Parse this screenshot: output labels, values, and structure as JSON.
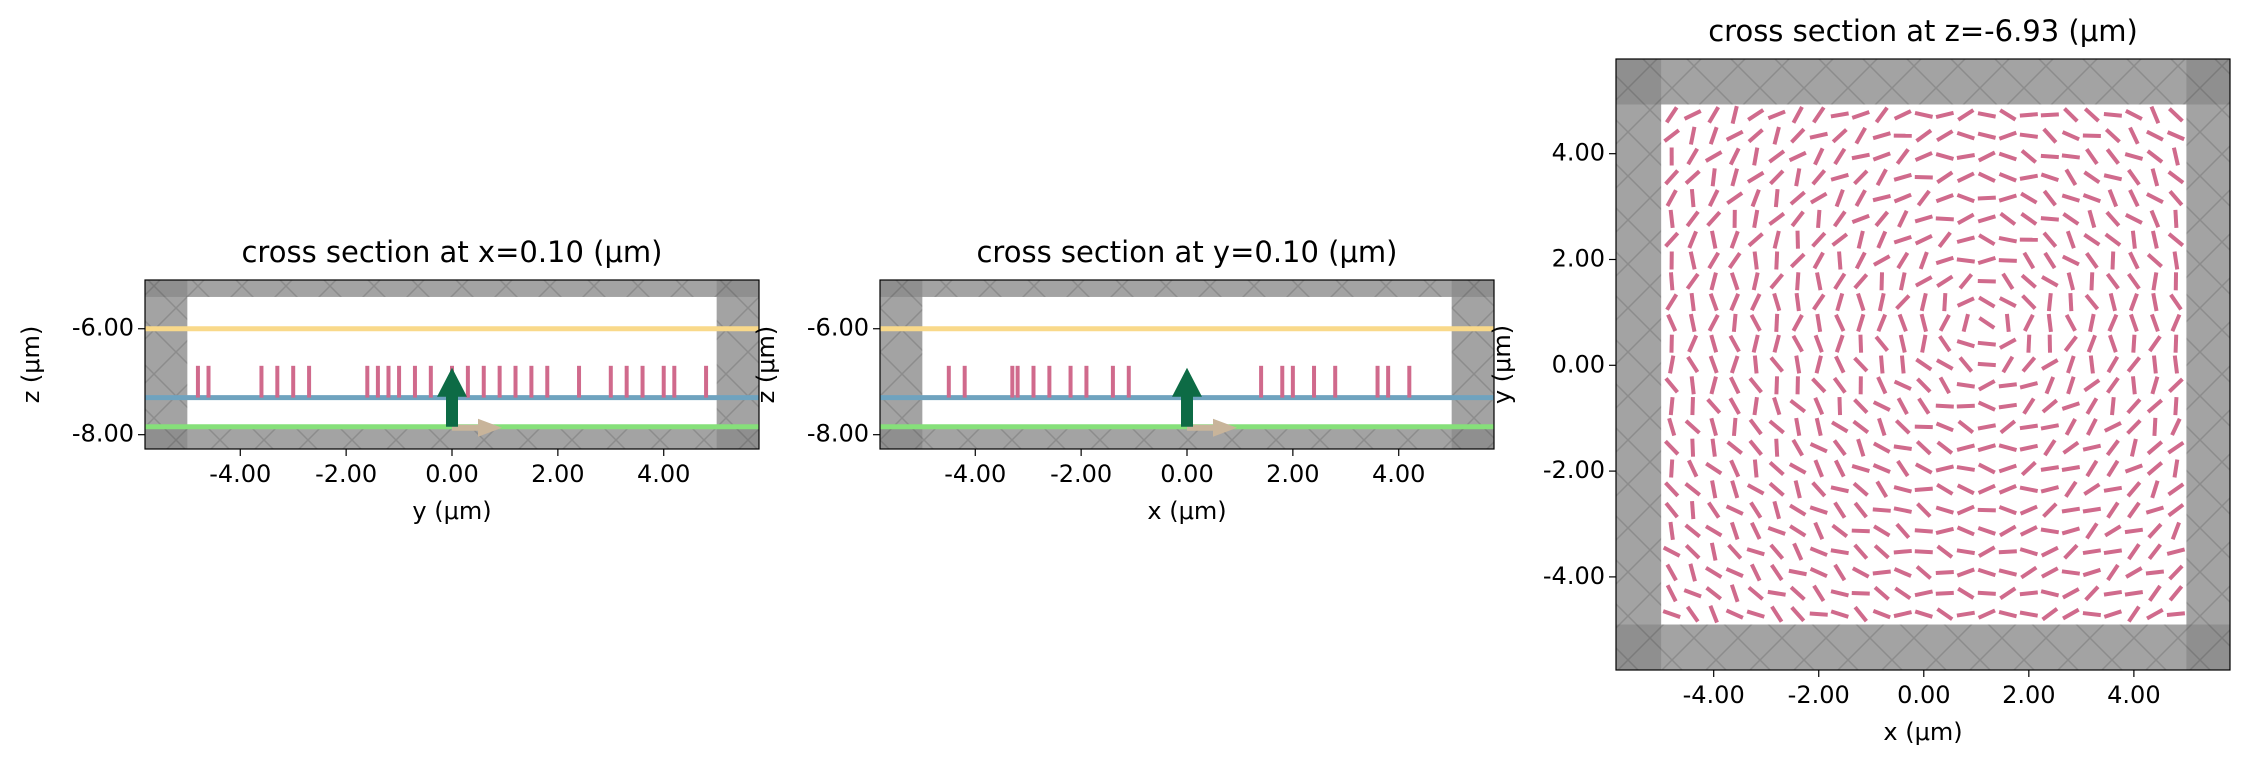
{
  "chart_data": [
    {
      "type": "side_section",
      "title": "cross section at x=0.10 (μm)",
      "xlabel": "y (μm)",
      "ylabel": "z (μm)",
      "xlim": [
        -5.8,
        5.8
      ],
      "ylim": [
        -8.27,
        -5.08
      ],
      "xticks": [
        {
          "value": -4,
          "label": "-4.00"
        },
        {
          "value": -2,
          "label": "-2.00"
        },
        {
          "value": 0,
          "label": "0.00"
        },
        {
          "value": 2,
          "label": "2.00"
        },
        {
          "value": 4,
          "label": "4.00"
        }
      ],
      "yticks": [
        {
          "value": -6,
          "label": "-6.00"
        },
        {
          "value": -8,
          "label": "-8.00"
        }
      ],
      "pml_bounds": [
        [
          -5,
          5
        ],
        [
          -7.85,
          -5.4
        ]
      ],
      "monitors": [
        {
          "color": "#f9d98a",
          "value": -6.0
        },
        {
          "color": "#6fa3bf",
          "value": -7.3
        },
        {
          "color": "#86e07a",
          "value": -7.85
        }
      ],
      "pillar_color": "#d06a8c",
      "pillar_z": [
        -7.3,
        -6.7
      ],
      "pillars": [
        -4.8,
        -4.6,
        -3.6,
        -3.3,
        -3.0,
        -2.7,
        -1.6,
        -1.4,
        -1.2,
        -1.0,
        -0.7,
        -0.4,
        0,
        0.3,
        0.6,
        0.9,
        1.2,
        1.5,
        1.8,
        2.4,
        3.0,
        3.3,
        3.6,
        4.0,
        4.2,
        4.8
      ],
      "source": [
        0,
        -7.85
      ]
    },
    {
      "type": "side_section",
      "title": "cross section at y=0.10 (μm)",
      "xlabel": "x (μm)",
      "ylabel": "z (μm)",
      "xlim": [
        -5.8,
        5.8
      ],
      "ylim": [
        -8.27,
        -5.08
      ],
      "xticks": [
        {
          "value": -4,
          "label": "-4.00"
        },
        {
          "value": -2,
          "label": "-2.00"
        },
        {
          "value": 0,
          "label": "0.00"
        },
        {
          "value": 2,
          "label": "2.00"
        },
        {
          "value": 4,
          "label": "4.00"
        }
      ],
      "yticks": [
        {
          "value": -6,
          "label": "-6.00"
        },
        {
          "value": -8,
          "label": "-8.00"
        }
      ],
      "pml_bounds": [
        [
          -5,
          5
        ],
        [
          -7.85,
          -5.4
        ]
      ],
      "monitors": [
        {
          "color": "#f9d98a",
          "value": -6.0
        },
        {
          "color": "#6fa3bf",
          "value": -7.3
        },
        {
          "color": "#86e07a",
          "value": -7.85
        }
      ],
      "pillar_color": "#d06a8c",
      "pillar_z": [
        -7.3,
        -6.7
      ],
      "pillars": [
        -4.5,
        -4.2,
        -3.3,
        -3.2,
        -2.9,
        -2.6,
        -2.2,
        -1.9,
        -1.4,
        -1.1,
        1.4,
        1.8,
        2.0,
        2.4,
        2.8,
        3.6,
        3.8,
        4.2
      ],
      "source": [
        0,
        -7.85
      ]
    },
    {
      "type": "top_section",
      "title": "cross section at z=-6.93 (μm)",
      "xlabel": "x (μm)",
      "ylabel": "y (μm)",
      "xlim": [
        -5.86,
        5.83
      ],
      "ylim": [
        -5.76,
        5.79
      ],
      "xticks": [
        {
          "value": -4,
          "label": "-4.00"
        },
        {
          "value": -2,
          "label": "-2.00"
        },
        {
          "value": 0,
          "label": "0.00"
        },
        {
          "value": 2,
          "label": "2.00"
        },
        {
          "value": 4,
          "label": "4.00"
        }
      ],
      "yticks": [
        {
          "value": -4,
          "label": "-4.00"
        },
        {
          "value": -2,
          "label": "-2.00"
        },
        {
          "value": 0,
          "label": "0.00"
        },
        {
          "value": 2,
          "label": "2.00"
        },
        {
          "value": 4,
          "label": "4.00"
        }
      ],
      "pml_bounds": [
        [
          -5,
          5
        ],
        [
          -4.9,
          4.93
        ]
      ],
      "pillar_color": "#d06a8c"
    }
  ]
}
